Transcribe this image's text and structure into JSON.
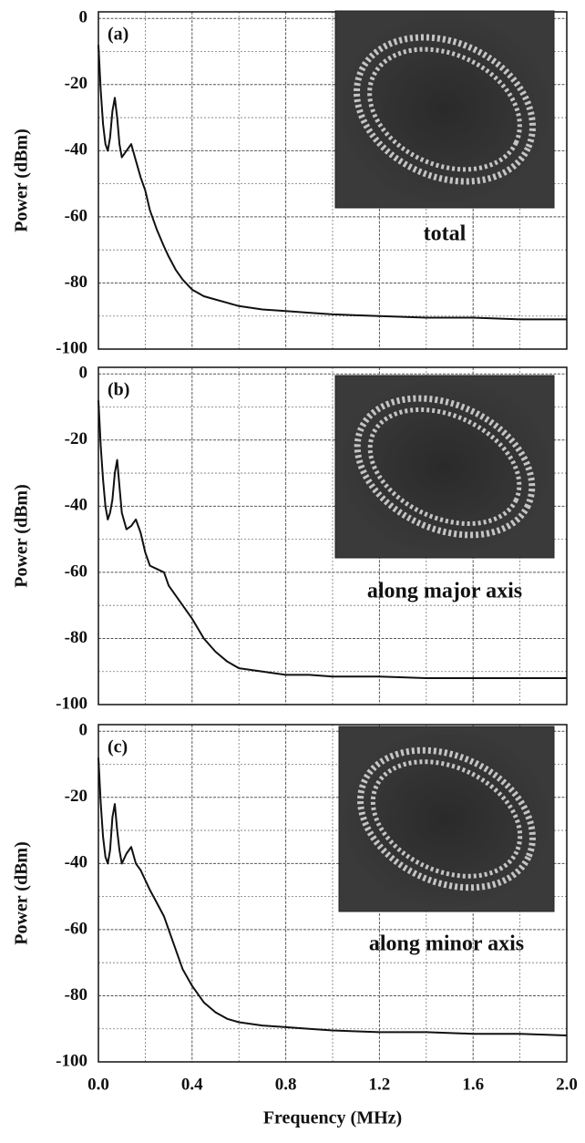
{
  "chart_data": [
    {
      "type": "line",
      "annotation": "(a)",
      "inset_label": "total",
      "ylabel": "Power (dBm)",
      "xlim": [
        0,
        2
      ],
      "ylim": [
        -100,
        2
      ],
      "yticks": [
        0,
        -20,
        -40,
        -60,
        -80,
        -100
      ],
      "minor_yticks": [
        -10,
        -30,
        -50,
        -70,
        -90
      ],
      "xticks": [
        0,
        0.4,
        0.8,
        1.2,
        1.6,
        2
      ],
      "minor_xticks": [
        0.2,
        0.6,
        1,
        1.4,
        1.8
      ],
      "grid": true,
      "color": "#111111",
      "x": [
        0,
        0.01,
        0.02,
        0.03,
        0.04,
        0.05,
        0.06,
        0.07,
        0.08,
        0.09,
        0.1,
        0.12,
        0.14,
        0.16,
        0.18,
        0.2,
        0.22,
        0.25,
        0.28,
        0.3,
        0.33,
        0.36,
        0.4,
        0.45,
        0.5,
        0.55,
        0.6,
        0.7,
        0.8,
        0.9,
        1,
        1.2,
        1.4,
        1.6,
        1.8,
        2
      ],
      "values": [
        -8,
        -22,
        -32,
        -38,
        -40,
        -36,
        -28,
        -24,
        -30,
        -38,
        -42,
        -40,
        -38,
        -43,
        -48,
        -52,
        -58,
        -64,
        -69,
        -72,
        -76,
        -79,
        -82,
        -84,
        -85,
        -86,
        -87,
        -88,
        -88.5,
        -89,
        -89.5,
        -90,
        -90.5,
        -90.5,
        -91,
        -91
      ]
    },
    {
      "type": "line",
      "annotation": "(b)",
      "inset_label": "along major axis",
      "ylabel": "Power (dBm)",
      "xlim": [
        0,
        2
      ],
      "ylim": [
        -100,
        2
      ],
      "yticks": [
        0,
        -20,
        -40,
        -60,
        -80,
        -100
      ],
      "minor_yticks": [
        -10,
        -30,
        -50,
        -70,
        -90
      ],
      "xticks": [
        0,
        0.4,
        0.8,
        1.2,
        1.6,
        2
      ],
      "minor_xticks": [
        0.2,
        0.6,
        1,
        1.4,
        1.8
      ],
      "grid": true,
      "color": "#111111",
      "x": [
        0,
        0.01,
        0.02,
        0.03,
        0.04,
        0.05,
        0.06,
        0.07,
        0.08,
        0.09,
        0.1,
        0.12,
        0.14,
        0.16,
        0.18,
        0.2,
        0.22,
        0.25,
        0.28,
        0.3,
        0.33,
        0.36,
        0.4,
        0.45,
        0.5,
        0.55,
        0.6,
        0.7,
        0.8,
        0.9,
        1,
        1.2,
        1.4,
        1.6,
        1.8,
        2
      ],
      "values": [
        -8,
        -22,
        -32,
        -40,
        -44,
        -42,
        -38,
        -30,
        -26,
        -34,
        -42,
        -47,
        -46,
        -44,
        -48,
        -54,
        -58,
        -59,
        -60,
        -64,
        -67,
        -70,
        -74,
        -80,
        -84,
        -87,
        -89,
        -90,
        -91,
        -91,
        -91.5,
        -91.5,
        -92,
        -92,
        -92,
        -92
      ]
    },
    {
      "type": "line",
      "annotation": "(c)",
      "inset_label": "along minor axis",
      "ylabel": "Power (dBm)",
      "xlabel": "Frequency (MHz)",
      "xlim": [
        0,
        2
      ],
      "ylim": [
        -100,
        2
      ],
      "yticks": [
        0,
        -20,
        -40,
        -60,
        -80,
        -100
      ],
      "minor_yticks": [
        -10,
        -30,
        -50,
        -70,
        -90
      ],
      "xticks": [
        {
          "value": 0,
          "label": "0.0"
        },
        0.4,
        0.8,
        1.2,
        1.6,
        {
          "value": 2,
          "label": "2.0"
        }
      ],
      "minor_xticks": [
        0.2,
        0.6,
        1,
        1.4,
        1.8
      ],
      "grid": true,
      "color": "#111111",
      "x": [
        0,
        0.01,
        0.02,
        0.03,
        0.04,
        0.05,
        0.06,
        0.07,
        0.08,
        0.09,
        0.1,
        0.12,
        0.14,
        0.16,
        0.18,
        0.2,
        0.22,
        0.25,
        0.28,
        0.3,
        0.33,
        0.36,
        0.4,
        0.45,
        0.5,
        0.55,
        0.6,
        0.7,
        0.8,
        0.9,
        1,
        1.2,
        1.4,
        1.6,
        1.8,
        2
      ],
      "values": [
        -8,
        -22,
        -32,
        -38,
        -40,
        -36,
        -26,
        -22,
        -30,
        -36,
        -40,
        -37,
        -35,
        -40,
        -42,
        -45,
        -48,
        -52,
        -56,
        -60,
        -66,
        -72,
        -77,
        -82,
        -85,
        -87,
        -88,
        -89,
        -89.5,
        -90,
        -90.5,
        -91,
        -91,
        -91.5,
        -91.5,
        -92
      ]
    }
  ]
}
